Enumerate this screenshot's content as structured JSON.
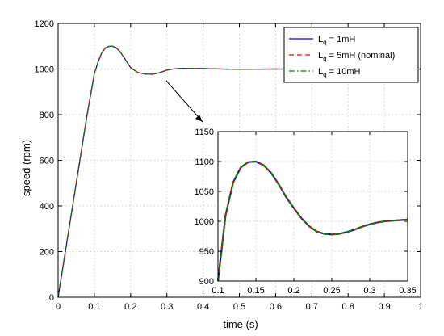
{
  "chart_data": [
    {
      "type": "line",
      "xlabel": "time (s)",
      "ylabel": "speed (rpm)",
      "xlim": [
        0,
        1
      ],
      "ylim": [
        0,
        1200
      ],
      "xticks": [
        0,
        0.1,
        0.2,
        0.3,
        0.4,
        0.5,
        0.6,
        0.7,
        0.8,
        0.9,
        1
      ],
      "xtick_labels": [
        "0",
        "0.1",
        "0.2",
        "0.3",
        "0.4",
        "0.5",
        "0.6",
        "0.7",
        "0.8",
        "0.9",
        "1"
      ],
      "yticks": [
        0,
        200,
        400,
        600,
        800,
        1000,
        1200
      ],
      "ytick_labels": [
        "0",
        "200",
        "400",
        "600",
        "800",
        "1000",
        "1200"
      ],
      "grid": true,
      "legend_position": "top-right",
      "series": [
        {
          "name": "L_q = 1mH",
          "legend_main": "L",
          "legend_sub": "q",
          "legend_rest": " = 1mH",
          "color": "#0000ff",
          "style": "solid"
        },
        {
          "name": "L_q = 5mH (nominal)",
          "legend_main": "L",
          "legend_sub": "q",
          "legend_rest": " = 5mH (nominal)",
          "color": "#ff0000",
          "style": "dashed"
        },
        {
          "name": "L_q = 10mH",
          "legend_main": "L",
          "legend_sub": "q",
          "legend_rest": " = 10mH",
          "color": "#008000",
          "style": "dashdot"
        }
      ],
      "x": [
        0,
        0.02,
        0.04,
        0.06,
        0.08,
        0.1,
        0.11,
        0.12,
        0.13,
        0.14,
        0.15,
        0.16,
        0.17,
        0.18,
        0.19,
        0.2,
        0.22,
        0.24,
        0.26,
        0.28,
        0.3,
        0.32,
        0.35,
        0.4,
        0.45,
        0.5,
        0.6,
        0.7,
        0.8,
        0.9,
        1.0
      ],
      "y": [
        0,
        200,
        400,
        600,
        800,
        980,
        1030,
        1070,
        1092,
        1099,
        1100,
        1093,
        1078,
        1055,
        1030,
        1006,
        985,
        978,
        977,
        984,
        995,
        1001,
        1003,
        1002,
        1000,
        999,
        1000,
        1000,
        1000,
        1000,
        1000
      ]
    },
    {
      "type": "line",
      "role": "inset",
      "xlim": [
        0.1,
        0.35
      ],
      "ylim": [
        900,
        1150
      ],
      "xticks": [
        0.1,
        0.15,
        0.2,
        0.25,
        0.3,
        0.35
      ],
      "xtick_labels": [
        "0.1",
        "0.15",
        "0.2",
        "0.25",
        "0.3",
        "0.35"
      ],
      "yticks": [
        900,
        950,
        1000,
        1050,
        1100,
        1150
      ],
      "ytick_labels": [
        "900",
        "950",
        "1000",
        "1050",
        "1100",
        "1150"
      ],
      "grid": true,
      "x": [
        0.1,
        0.11,
        0.12,
        0.13,
        0.14,
        0.15,
        0.16,
        0.17,
        0.18,
        0.19,
        0.2,
        0.21,
        0.22,
        0.23,
        0.24,
        0.25,
        0.26,
        0.27,
        0.28,
        0.29,
        0.3,
        0.31,
        0.32,
        0.33,
        0.34,
        0.35
      ],
      "y": [
        900,
        1010,
        1065,
        1090,
        1099,
        1100,
        1094,
        1081,
        1062,
        1040,
        1022,
        1005,
        992,
        983,
        979,
        978,
        979,
        982,
        986,
        991,
        995,
        998,
        1000,
        1001,
        1002,
        1003
      ]
    }
  ]
}
